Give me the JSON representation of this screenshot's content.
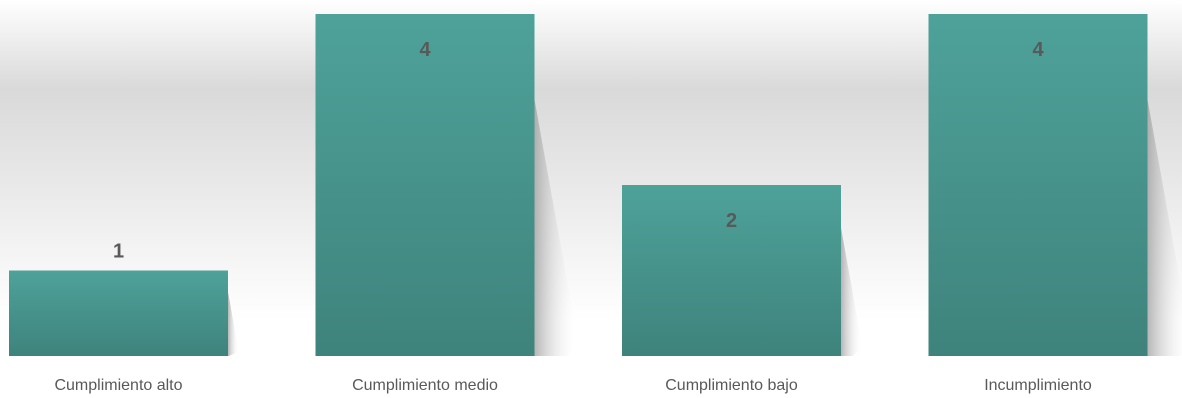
{
  "chart_data": {
    "type": "bar",
    "categories": [
      "Cumplimiento alto",
      "Cumplimiento medio",
      "Cumplimiento bajo",
      "Incumplimiento"
    ],
    "values": [
      1,
      4,
      2,
      4
    ],
    "data_labels": [
      "1",
      "4",
      "2",
      "4"
    ],
    "title": "",
    "xlabel": "",
    "ylabel": "",
    "ylim": [
      0,
      4
    ],
    "grid": false,
    "legend": "none",
    "colors": {
      "bar_top": "#4EA29A",
      "bar_bottom": "#3E837C",
      "background_top": "#FFFFFF",
      "background_mid": "#D9D9D9",
      "label_text": "#595959"
    }
  }
}
